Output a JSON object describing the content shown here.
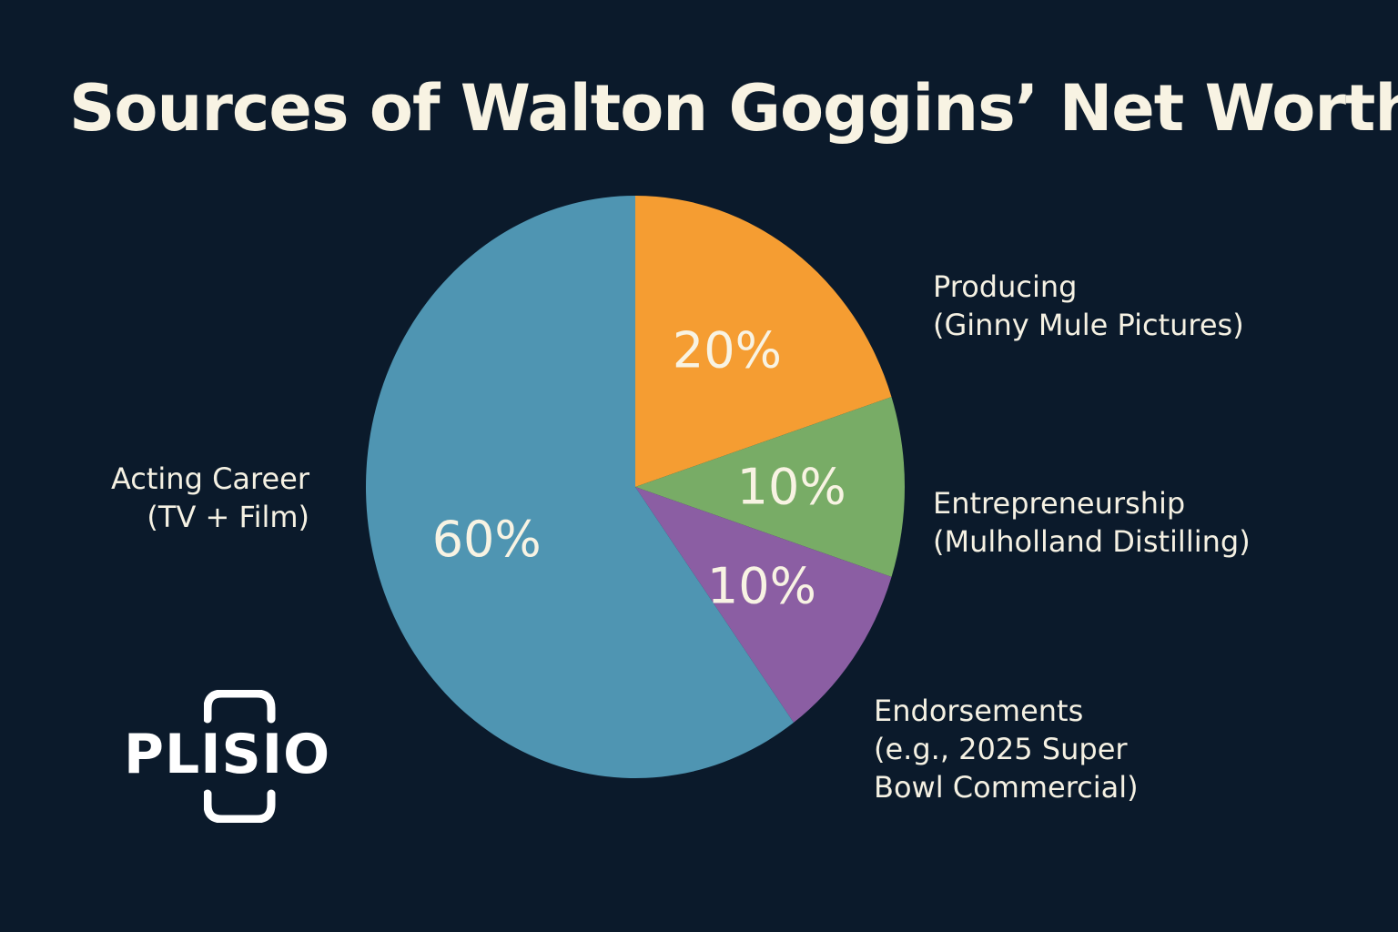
{
  "chart_data": {
    "type": "pie",
    "title": "Sources of Walton Goggins’ Net Worth",
    "slices": [
      {
        "key": "producing",
        "value": 20,
        "display": "20%",
        "label": [
          "Producing",
          "(Ginny Mule Pictures)"
        ],
        "color": "#f59d32"
      },
      {
        "key": "entrepreneurship",
        "value": 10,
        "display": "10%",
        "label": [
          "Entrepreneurship",
          "(Mulholland Distilling)"
        ],
        "color": "#78ac66"
      },
      {
        "key": "endorsements",
        "value": 10,
        "display": "10%",
        "label": [
          "Endorsements",
          "(e.g., 2025 Super",
          "Bowl Commercial)"
        ],
        "color": "#8b5ea3"
      },
      {
        "key": "acting",
        "value": 60,
        "display": "60%",
        "label": [
          "Acting Career",
          "(TV + Film)"
        ],
        "color": "#4f95b2"
      }
    ],
    "legend": "none"
  },
  "logo": {
    "text": "PLISIO"
  },
  "colors": {
    "background": "#0b1a2b",
    "text": "#f5f1e3"
  }
}
